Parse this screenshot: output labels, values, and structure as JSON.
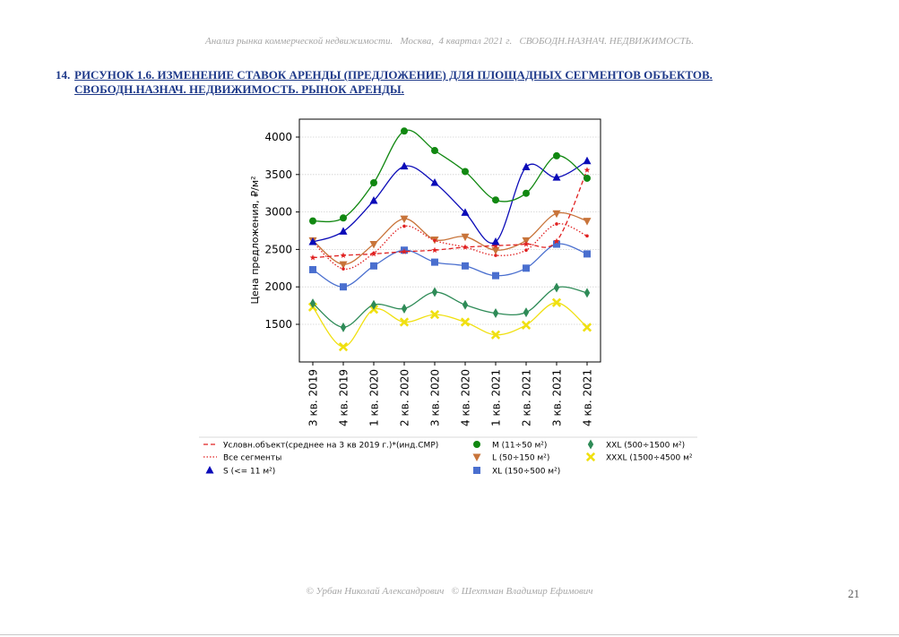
{
  "header": {
    "text": "Анализ рынка коммерческой недвижимости.   Москва,  4 квартал 2021 г.   СВОБОДН.НАЗНАЧ. НЕДВИЖИМОСТЬ."
  },
  "figure": {
    "number": "14.",
    "title_line1": "РИСУНОК 1.6. ИЗМЕНЕНИЕ СТАВОК АРЕНДЫ (ПРЕДЛОЖЕНИЕ) ДЛЯ ПЛОЩАДНЫХ СЕГМЕНТОВ ОБЪЕКТОВ.",
    "title_line2": "СВОБОДН.НАЗНАЧ. НЕДВИЖИМОСТЬ. РЫНОК АРЕНДЫ."
  },
  "chart_data": {
    "type": "line",
    "title": "",
    "xlabel": "",
    "ylabel": "Цена предложения, ₽/м²",
    "categories": [
      "3 кв. 2019",
      "4 кв. 2019",
      "1 кв. 2020",
      "2 кв. 2020",
      "3 кв. 2020",
      "4 кв. 2020",
      "1 кв. 2021",
      "2 кв. 2021",
      "3 кв. 2021",
      "4 кв. 2021"
    ],
    "ylim": [
      1000,
      4200
    ],
    "yticks": [
      1500,
      2000,
      2500,
      3000,
      3500,
      4000
    ],
    "grid": "horizontal",
    "legend_position": "bottom",
    "series": [
      {
        "name": "Условн.объект(среднее на 3 кв 2019 г.)*(инд.СМР)",
        "style": "dashed",
        "marker": "star",
        "color": "#e02020",
        "values": [
          2390,
          2420,
          2440,
          2470,
          2490,
          2530,
          2550,
          2570,
          2610,
          3560
        ]
      },
      {
        "name": "Все сегменты",
        "style": "dotted",
        "marker": "dot",
        "color": "#e02020",
        "values": [
          2600,
          2240,
          2450,
          2810,
          2620,
          2530,
          2420,
          2490,
          2840,
          2680
        ]
      },
      {
        "name": "S (<= 11 м²)",
        "style": "solid",
        "marker": "triangle-up",
        "color": "#0b0bb8",
        "values": [
          2600,
          2740,
          3150,
          3610,
          3390,
          2990,
          2600,
          3600,
          3460,
          3680
        ]
      },
      {
        "name": "M (11÷50 м²)",
        "style": "solid",
        "marker": "circle",
        "color": "#118811",
        "values": [
          2880,
          2920,
          3390,
          4080,
          3820,
          3540,
          3160,
          3250,
          3750,
          3450
        ]
      },
      {
        "name": "L (50÷150 м²)",
        "style": "solid",
        "marker": "triangle-down",
        "color": "#c8743a",
        "values": [
          2620,
          2300,
          2570,
          2910,
          2630,
          2670,
          2490,
          2620,
          2980,
          2880
        ]
      },
      {
        "name": "XL (150÷500 м²)",
        "style": "solid",
        "marker": "square",
        "color": "#4a6fcf",
        "values": [
          2230,
          2000,
          2280,
          2490,
          2330,
          2280,
          2150,
          2250,
          2570,
          2440
        ]
      },
      {
        "name": "XXL (500÷1500 м²)",
        "style": "solid",
        "marker": "diamond",
        "color": "#2e8b57",
        "values": [
          1780,
          1460,
          1760,
          1710,
          1930,
          1760,
          1650,
          1660,
          1990,
          1920
        ]
      },
      {
        "name": "XXXL (1500÷4500 м²",
        "style": "solid",
        "marker": "x",
        "color": "#f0e010",
        "values": [
          1730,
          1200,
          1700,
          1530,
          1630,
          1530,
          1360,
          1490,
          1790,
          1460
        ]
      }
    ]
  },
  "footer": {
    "text": "© Урбан Николай Александрович   © Шехтман Владимир Ефимович",
    "page_number": "21"
  }
}
